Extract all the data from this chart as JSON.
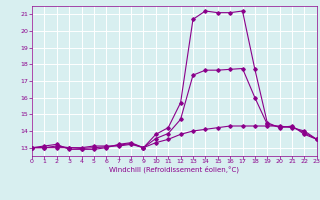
{
  "xlabel": "Windchill (Refroidissement éolien,°C)",
  "xlim": [
    0,
    23
  ],
  "ylim": [
    12.5,
    21.5
  ],
  "yticks": [
    13,
    14,
    15,
    16,
    17,
    18,
    19,
    20,
    21
  ],
  "xticks": [
    0,
    1,
    2,
    3,
    4,
    5,
    6,
    7,
    8,
    9,
    10,
    11,
    12,
    13,
    14,
    15,
    16,
    17,
    18,
    19,
    20,
    21,
    22,
    23
  ],
  "bg_color": "#d8eff0",
  "line_color": "#8b008b",
  "grid_color": "#ffffff",
  "series1_x": [
    0,
    1,
    2,
    3,
    4,
    5,
    6,
    7,
    8,
    9,
    10,
    11,
    12,
    13,
    14,
    15,
    16,
    17,
    18,
    19,
    20,
    21,
    22,
    23
  ],
  "series1_y": [
    13.0,
    13.0,
    13.0,
    13.0,
    13.0,
    13.1,
    13.1,
    13.1,
    13.2,
    13.0,
    13.3,
    13.5,
    13.8,
    14.0,
    14.1,
    14.2,
    14.3,
    14.3,
    14.3,
    14.3,
    14.3,
    14.2,
    14.0,
    13.5
  ],
  "series2_x": [
    0,
    1,
    2,
    3,
    4,
    5,
    6,
    7,
    8,
    9,
    10,
    11,
    12,
    13,
    14,
    15,
    16,
    17,
    18,
    19,
    20,
    21,
    22,
    23
  ],
  "series2_y": [
    13.0,
    13.1,
    13.2,
    12.9,
    12.9,
    12.9,
    13.0,
    13.2,
    13.3,
    13.0,
    13.8,
    14.2,
    15.7,
    20.7,
    21.2,
    21.1,
    21.1,
    21.2,
    17.7,
    14.5,
    14.2,
    14.3,
    13.8,
    13.5
  ],
  "series3_x": [
    0,
    1,
    2,
    3,
    4,
    5,
    6,
    7,
    8,
    9,
    10,
    11,
    12,
    13,
    14,
    15,
    16,
    17,
    18,
    19,
    20,
    21,
    22,
    23
  ],
  "series3_y": [
    13.0,
    13.0,
    13.1,
    13.0,
    12.95,
    13.0,
    13.05,
    13.15,
    13.25,
    13.0,
    13.55,
    13.85,
    14.7,
    17.35,
    17.65,
    17.65,
    17.7,
    17.75,
    16.0,
    14.4,
    14.25,
    14.25,
    13.9,
    13.5
  ]
}
